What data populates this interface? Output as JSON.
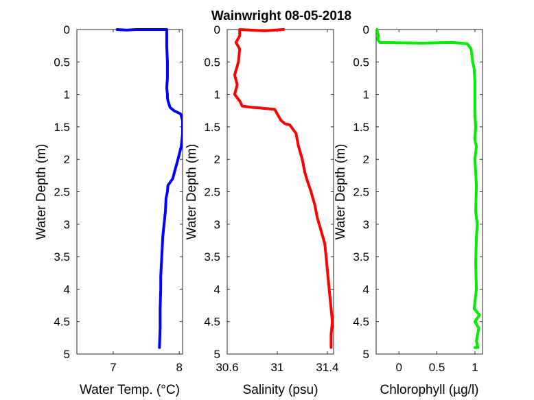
{
  "chart_data": {
    "title": "Wainwright  08-05-2018",
    "type": "line",
    "shared_y": {
      "label": "Water Depth (m)",
      "ylim": [
        0,
        5
      ],
      "reversed": true,
      "ticks": [
        0,
        0.5,
        1,
        1.5,
        2,
        2.5,
        3,
        3.5,
        4,
        4.5,
        5
      ],
      "tick_labels": [
        "0",
        "0.5",
        "1",
        "1.5",
        "2",
        "2.5",
        "3",
        "3.5",
        "4",
        "4.5",
        "5"
      ]
    },
    "panels": [
      {
        "id": "temperature",
        "xlabel": "Water Temp. (°C)",
        "xlim": [
          6.45,
          8.05
        ],
        "xticks": [
          7,
          8
        ],
        "xtick_labels": [
          "7",
          "8"
        ],
        "color": "#0000ff",
        "x": [
          7.06,
          7.2,
          7.35,
          7.44,
          7.81,
          7.81,
          7.82,
          7.82,
          7.81,
          7.82,
          7.82,
          7.83,
          7.86,
          7.92,
          8.02,
          8.05,
          8.05,
          8.03,
          7.98,
          7.94,
          7.9,
          7.83,
          7.82,
          7.8,
          7.79,
          7.77,
          7.75,
          7.74,
          7.73,
          7.72,
          7.72,
          7.71,
          7.71,
          7.7
        ],
        "y": [
          0.0,
          0.01,
          0.0,
          0.0,
          0.0,
          0.25,
          0.5,
          0.75,
          0.9,
          1.0,
          1.05,
          1.1,
          1.2,
          1.25,
          1.3,
          1.4,
          1.6,
          1.8,
          2.0,
          2.15,
          2.3,
          2.4,
          2.5,
          2.6,
          2.8,
          3.0,
          3.2,
          3.4,
          3.6,
          3.8,
          4.0,
          4.3,
          4.6,
          4.9
        ]
      },
      {
        "id": "salinity",
        "xlabel": "Salinity (psu)",
        "xlim": [
          30.6,
          31.45
        ],
        "xticks": [
          30.6,
          31,
          31.4
        ],
        "xtick_labels": [
          "30.6",
          "31",
          "31.4"
        ],
        "color": "#ff0000",
        "x": [
          31.05,
          30.9,
          30.7,
          30.7,
          30.67,
          30.7,
          30.69,
          30.66,
          30.68,
          30.66,
          30.7,
          30.72,
          30.8,
          30.87,
          30.98,
          31.0,
          31.03,
          31.06,
          31.1,
          31.15,
          31.17,
          31.2,
          31.22,
          31.24,
          31.27,
          31.3,
          31.32,
          31.35,
          31.38,
          31.39,
          31.4,
          31.41,
          31.42,
          31.43,
          31.44,
          31.43,
          31.43
        ],
        "y": [
          0.0,
          0.02,
          0.0,
          0.1,
          0.2,
          0.3,
          0.5,
          0.7,
          0.85,
          1.0,
          1.1,
          1.18,
          1.2,
          1.21,
          1.23,
          1.3,
          1.4,
          1.45,
          1.47,
          1.6,
          1.8,
          2.0,
          2.2,
          2.33,
          2.5,
          2.7,
          2.9,
          3.1,
          3.3,
          3.5,
          3.7,
          3.9,
          4.1,
          4.3,
          4.5,
          4.7,
          4.9
        ]
      },
      {
        "id": "chlorophyll",
        "xlabel": "Chlorophyll (µg/l)",
        "xlim": [
          -0.3,
          1.1
        ],
        "xticks": [
          0,
          0.5,
          1
        ],
        "xtick_labels": [
          "0",
          "0.5",
          "1"
        ],
        "color": "#00ee00",
        "x": [
          -0.29,
          -0.27,
          -0.28,
          -0.25,
          0.3,
          0.7,
          0.9,
          0.95,
          0.97,
          0.99,
          1.0,
          1.0,
          1.0,
          1.01,
          1.0,
          1.02,
          1.0,
          1.02,
          1.01,
          1.03,
          1.02,
          1.01,
          1.02,
          0.99,
          1.06,
          1.0,
          1.05,
          1.02,
          1.04,
          1.0
        ],
        "y": [
          0.0,
          0.1,
          0.15,
          0.2,
          0.21,
          0.2,
          0.22,
          0.3,
          0.5,
          0.6,
          0.8,
          1.0,
          1.3,
          1.5,
          1.7,
          1.8,
          2.0,
          2.4,
          2.8,
          3.0,
          3.2,
          3.6,
          4.0,
          4.3,
          4.4,
          4.5,
          4.6,
          4.8,
          4.9,
          4.9
        ]
      }
    ]
  }
}
